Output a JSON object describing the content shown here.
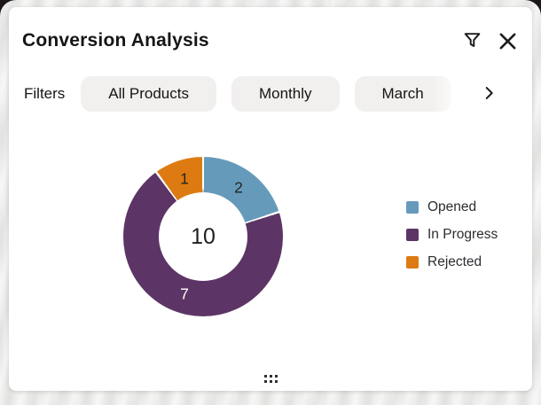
{
  "header": {
    "title": "Conversion Analysis"
  },
  "icons": {
    "filter": "funnel-icon",
    "close": "close-icon",
    "scroll_next": "chevron-right-icon",
    "drag": "grip-dots-icon"
  },
  "filters": {
    "label": "Filters",
    "chips": [
      "All Products",
      "Monthly",
      "March"
    ]
  },
  "chart_data": {
    "type": "pie",
    "subtype": "donut",
    "title": "Conversion Analysis",
    "categories": [
      "Opened",
      "In Progress",
      "Rejected"
    ],
    "values": [
      2,
      7,
      1
    ],
    "total": 10,
    "center_label": "10",
    "colors": [
      "#669ABB",
      "#5C3566",
      "#DD7B12"
    ],
    "slice_label_colors": [
      "#24251F",
      "#FFFFFF",
      "#24251F"
    ],
    "legend_position": "right",
    "legend": [
      "Opened",
      "In Progress",
      "Rejected"
    ],
    "start_angle_deg": 0,
    "direction": "clockwise"
  }
}
